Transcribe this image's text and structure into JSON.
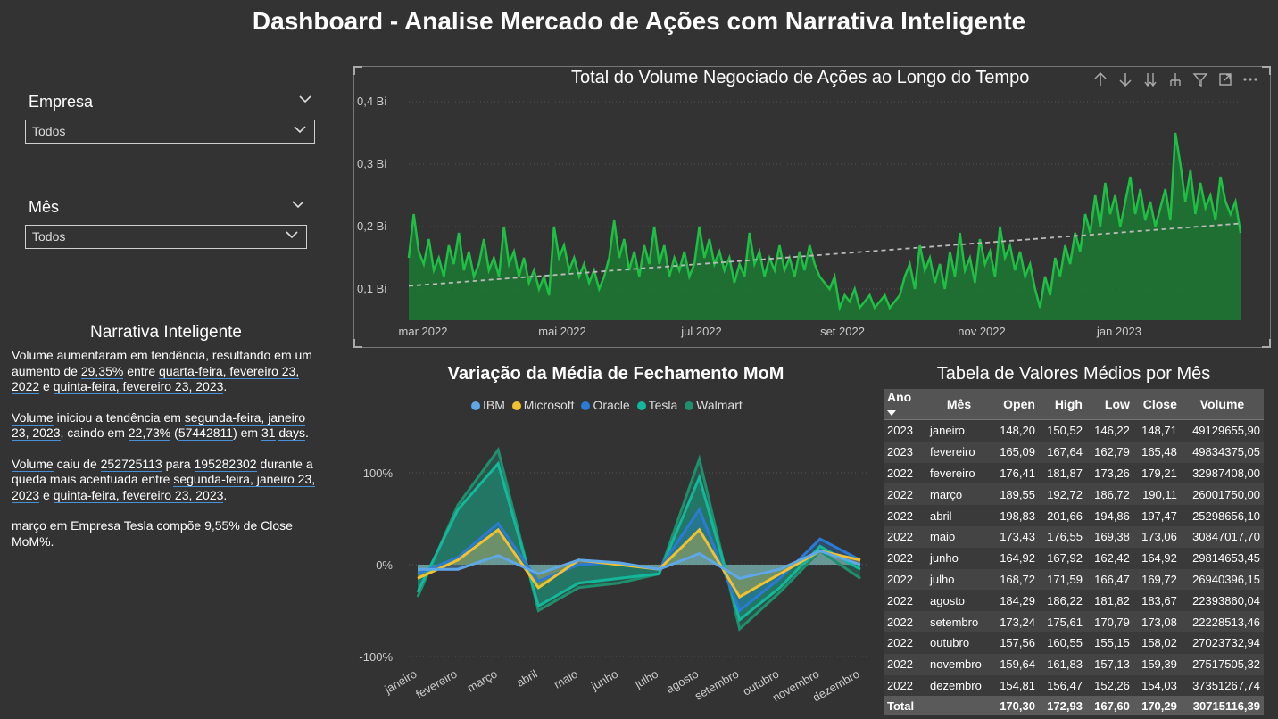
{
  "title": "Dashboard - Analise Mercado de Ações com Narrativa Inteligente",
  "slicers": [
    {
      "label": "Empresa",
      "value": "Todos"
    },
    {
      "label": "Mês",
      "value": "Todos"
    }
  ],
  "narrative": {
    "title": "Narrativa Inteligente",
    "p1": {
      "a": "Volume aumentaram em tendência, resultando em um aumento de ",
      "pct": "29,35%",
      "b": " entre ",
      "d1": "quarta-feira, fevereiro 23, 2022",
      "c": " e ",
      "d2": "quinta-feira, fevereiro 23, 2023",
      "end": "."
    },
    "p2": {
      "metric": "Volume",
      "a": " iniciou a tendência em ",
      "d1": "segunda-feira, janeiro 23, 2023",
      "b": ", caindo em ",
      "pct": "22,73%",
      "c": " (",
      "abs": "57442811",
      "d": ") em ",
      "n": "31",
      "e": " ",
      "unit": "days",
      "end": "."
    },
    "p3": {
      "metric": "Volume",
      "a": " caiu de ",
      "v1": "252725113",
      "b": " para ",
      "v2": "195282302",
      "c": " durante a queda mais acentuada entre ",
      "d1": "segunda-feira, janeiro 23, 2023",
      "d": " e ",
      "d2": "quinta-feira, fevereiro 23, 2023",
      "end": "."
    },
    "p4": {
      "month": "março",
      "a": " em Empresa ",
      "company": "Tesla",
      "b": " compõe ",
      "pct": "9,55%",
      "c": " de Close MoM%."
    }
  },
  "toolbar_icons": [
    "arrow-up-icon",
    "arrow-down-icon",
    "double-arrow-down-icon",
    "expand-hierarchy-icon",
    "filter-icon",
    "focus-mode-icon",
    "more-options-icon"
  ],
  "area_chart": {
    "title": "Total do Volume Negociado de Ações ao Longo do Tempo",
    "line_color": "#1fbf45",
    "fill_color": "#1c7a34",
    "trend_color": "#bbbbbb"
  },
  "mom_chart": {
    "title": "Variação da Média de Fechamento MoM"
  },
  "table": {
    "title": "Tabela de Valores Médios por Mês",
    "columns": [
      "Ano",
      "Mês",
      "Open",
      "High",
      "Low",
      "Close",
      "Volume"
    ],
    "rows": [
      [
        "2023",
        "janeiro",
        "148,20",
        "150,52",
        "146,22",
        "148,71",
        "49129655,90"
      ],
      [
        "2023",
        "fevereiro",
        "165,09",
        "167,64",
        "162,79",
        "165,48",
        "49834375,05"
      ],
      [
        "2022",
        "fevereiro",
        "176,41",
        "181,87",
        "173,26",
        "179,21",
        "32987408,00"
      ],
      [
        "2022",
        "março",
        "189,55",
        "192,72",
        "186,72",
        "190,11",
        "26001750,00"
      ],
      [
        "2022",
        "abril",
        "198,83",
        "201,66",
        "194,86",
        "197,47",
        "25298656,10"
      ],
      [
        "2022",
        "maio",
        "173,43",
        "176,55",
        "169,38",
        "173,06",
        "30847017,70"
      ],
      [
        "2022",
        "junho",
        "164,92",
        "167,92",
        "162,42",
        "164,92",
        "29814653,45"
      ],
      [
        "2022",
        "julho",
        "168,72",
        "171,59",
        "166,47",
        "169,72",
        "26940396,15"
      ],
      [
        "2022",
        "agosto",
        "184,29",
        "186,22",
        "181,82",
        "183,67",
        "22393860,04"
      ],
      [
        "2022",
        "setembro",
        "173,24",
        "175,61",
        "170,79",
        "173,08",
        "22228513,46"
      ],
      [
        "2022",
        "outubro",
        "157,56",
        "160,55",
        "155,15",
        "158,02",
        "27023732,94"
      ],
      [
        "2022",
        "novembro",
        "159,64",
        "161,83",
        "157,13",
        "159,39",
        "27517505,32"
      ],
      [
        "2022",
        "dezembro",
        "154,81",
        "156,47",
        "152,26",
        "154,03",
        "37351267,74"
      ]
    ],
    "total": [
      "Total",
      "",
      "170,30",
      "172,93",
      "167,60",
      "170,29",
      "30715116,39"
    ]
  },
  "chart_data": [
    {
      "type": "area",
      "title": "Total do Volume Negociado de Ações ao Longo do Tempo",
      "xlabel": "",
      "ylabel": "",
      "x_ticks": [
        "mar 2022",
        "mai 2022",
        "jul 2022",
        "set 2022",
        "nov 2022",
        "jan 2023"
      ],
      "y_ticks": [
        "0,1 Bi",
        "0,2 Bi",
        "0,3 Bi",
        "0,4 Bi"
      ],
      "ylim": [
        0.05,
        0.4
      ],
      "grid": true,
      "series": [
        {
          "values": [
            0.15,
            0.22,
            0.16,
            0.14,
            0.18,
            0.13,
            0.15,
            0.12,
            0.17,
            0.14,
            0.19,
            0.13,
            0.16,
            0.12,
            0.14,
            0.18,
            0.13,
            0.15,
            0.12,
            0.2,
            0.14,
            0.16,
            0.12,
            0.15,
            0.11,
            0.13,
            0.1,
            0.12,
            0.09,
            0.2,
            0.15,
            0.17,
            0.13,
            0.15,
            0.12,
            0.14,
            0.11,
            0.13,
            0.1,
            0.12,
            0.15,
            0.21,
            0.15,
            0.18,
            0.13,
            0.16,
            0.12,
            0.17,
            0.14,
            0.2,
            0.14,
            0.17,
            0.12,
            0.15,
            0.13,
            0.16,
            0.12,
            0.14,
            0.2,
            0.15,
            0.18,
            0.14,
            0.16,
            0.13,
            0.15,
            0.11,
            0.14,
            0.12,
            0.19,
            0.14,
            0.16,
            0.12,
            0.15,
            0.13,
            0.17,
            0.13,
            0.15,
            0.12,
            0.16,
            0.13,
            0.17,
            0.14,
            0.12,
            0.11,
            0.1,
            0.12,
            0.07,
            0.09,
            0.08,
            0.1,
            0.07,
            0.08,
            0.09,
            0.07,
            0.08,
            0.09,
            0.07,
            0.08,
            0.09,
            0.12,
            0.14,
            0.1,
            0.17,
            0.13,
            0.15,
            0.11,
            0.14,
            0.1,
            0.16,
            0.12,
            0.19,
            0.13,
            0.15,
            0.11,
            0.18,
            0.14,
            0.16,
            0.12,
            0.2,
            0.15,
            0.17,
            0.13,
            0.16,
            0.12,
            0.14,
            0.1,
            0.07,
            0.12,
            0.09,
            0.15,
            0.12,
            0.17,
            0.14,
            0.19,
            0.16,
            0.22,
            0.19,
            0.25,
            0.2,
            0.27,
            0.22,
            0.25,
            0.2,
            0.24,
            0.28,
            0.22,
            0.26,
            0.21,
            0.24,
            0.2,
            0.23,
            0.26,
            0.21,
            0.35,
            0.3,
            0.24,
            0.29,
            0.22,
            0.27,
            0.23,
            0.25,
            0.21,
            0.28,
            0.24,
            0.22,
            0.24,
            0.19
          ]
        },
        {
          "name": "",
          "values": [
            0.105,
            0.205
          ]
        }
      ]
    },
    {
      "type": "area",
      "title": "Variação da Média de Fechamento MoM",
      "categories": [
        "janeiro",
        "fevereiro",
        "março",
        "abril",
        "maio",
        "junho",
        "julho",
        "agosto",
        "setembro",
        "outubro",
        "novembro",
        "dezembro"
      ],
      "y_ticks": [
        "-100%",
        "0%",
        "100%"
      ],
      "ylim": [
        -100,
        100
      ],
      "legend_position": "top-center",
      "series": [
        {
          "name": "IBM",
          "color": "#5fa8e8",
          "values": [
            -5,
            -5,
            10,
            -10,
            5,
            2,
            -5,
            12,
            -15,
            -5,
            15,
            0
          ]
        },
        {
          "name": "Microsoft",
          "color": "#f2c12e",
          "values": [
            -15,
            5,
            38,
            -25,
            5,
            0,
            -5,
            38,
            -35,
            -10,
            15,
            5
          ]
        },
        {
          "name": "Oracle",
          "color": "#2b7bd4",
          "values": [
            -10,
            8,
            45,
            -18,
            0,
            2,
            -5,
            60,
            -50,
            -15,
            28,
            5
          ]
        },
        {
          "name": "Tesla",
          "color": "#13b89a",
          "values": [
            -30,
            60,
            110,
            -45,
            -20,
            -15,
            -10,
            95,
            -60,
            -25,
            20,
            -5
          ]
        },
        {
          "name": "Walmart",
          "color": "#1f8f6e",
          "values": [
            -35,
            65,
            125,
            -50,
            -25,
            -20,
            -10,
            115,
            -70,
            -30,
            15,
            -15
          ]
        }
      ]
    },
    {
      "type": "table",
      "title": "Tabela de Valores Médios por Mês"
    }
  ]
}
